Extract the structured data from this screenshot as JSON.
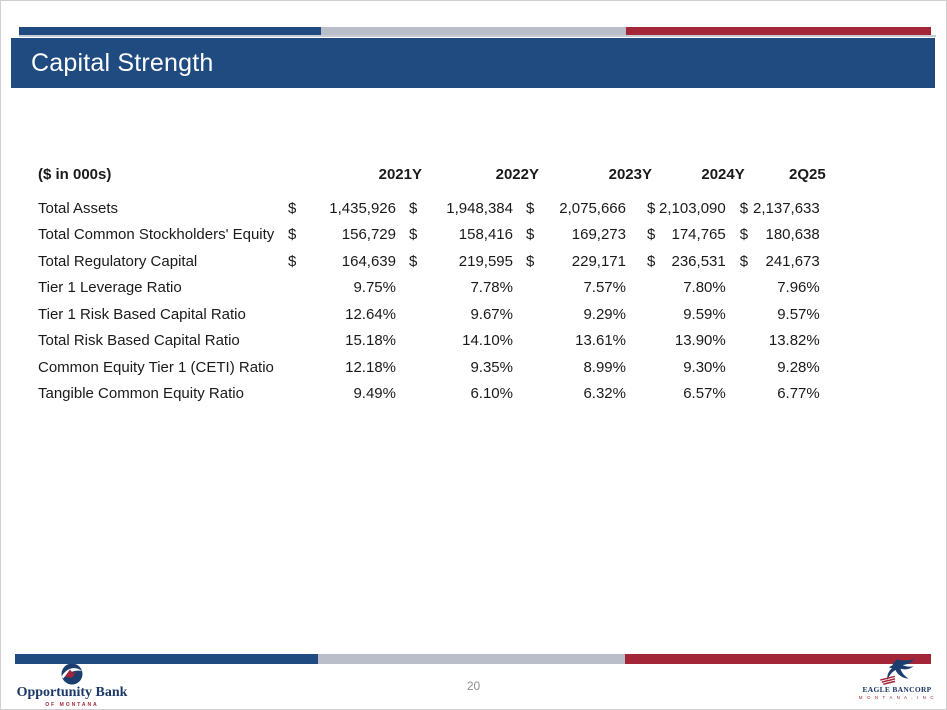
{
  "slide": {
    "title": "Capital Strength",
    "page_number": "20"
  },
  "table": {
    "unit_label": "($ in 000s)",
    "currency_symbol": "$",
    "columns": [
      "2021Y",
      "2022Y",
      "2023Y",
      "2024Y",
      "2Q25"
    ],
    "rows": [
      {
        "label": "Total Assets",
        "currency": true,
        "values": [
          "1,435,926",
          "1,948,384",
          "2,075,666",
          "2,103,090",
          "2,137,633"
        ]
      },
      {
        "label": "Total Common Stockholders' Equity",
        "currency": true,
        "values": [
          "156,729",
          "158,416",
          "169,273",
          "174,765",
          "180,638"
        ]
      },
      {
        "label": "Total Regulatory Capital",
        "currency": true,
        "values": [
          "164,639",
          "219,595",
          "229,171",
          "236,531",
          "241,673"
        ]
      },
      {
        "label": "Tier 1 Leverage Ratio",
        "currency": false,
        "values": [
          "9.75%",
          "7.78%",
          "7.57%",
          "7.80%",
          "7.96%"
        ]
      },
      {
        "label": "Tier 1 Risk Based Capital Ratio",
        "currency": false,
        "values": [
          "12.64%",
          "9.67%",
          "9.29%",
          "9.59%",
          "9.57%"
        ]
      },
      {
        "label": "Total Risk Based Capital Ratio",
        "currency": false,
        "values": [
          "15.18%",
          "14.10%",
          "13.61%",
          "13.90%",
          "13.82%"
        ]
      },
      {
        "label": "Common Equity Tier 1 (CETI) Ratio",
        "currency": false,
        "values": [
          "12.18%",
          "9.35%",
          "8.99%",
          "9.30%",
          "9.28%"
        ]
      },
      {
        "label": "Tangible Common Equity Ratio",
        "currency": false,
        "values": [
          "9.49%",
          "6.10%",
          "6.32%",
          "6.57%",
          "6.77%"
        ]
      }
    ]
  },
  "footer": {
    "left_logo": {
      "name": "Opportunity Bank",
      "subtext": "OF MONTANA"
    },
    "right_logo": {
      "name": "EAGLE BANCORP",
      "subtext": "M O N T A N A , I N C ."
    }
  },
  "colors": {
    "navy": "#1F4B80",
    "accent_red": "#A32638",
    "accent_gray": "#B9BEC8",
    "logo_navy": "#1B3866"
  }
}
